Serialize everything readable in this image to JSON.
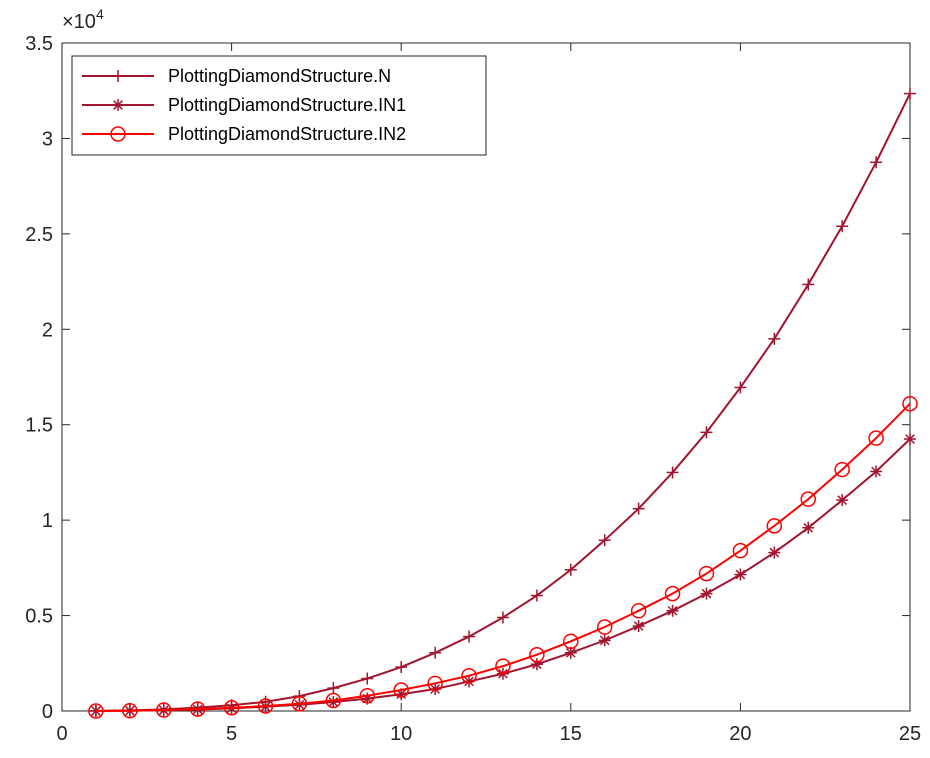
{
  "chart_data": {
    "type": "line",
    "title": "",
    "xlabel": "",
    "ylabel": "",
    "xlim": [
      0,
      25
    ],
    "ylim": [
      0,
      35000
    ],
    "xticks": [
      0,
      5,
      10,
      15,
      20,
      25
    ],
    "xtick_labels": [
      "0",
      "5",
      "10",
      "15",
      "20",
      "25"
    ],
    "yticks": [
      0,
      5000,
      10000,
      15000,
      20000,
      25000,
      30000,
      35000
    ],
    "ytick_labels": [
      "0",
      "0.5",
      "1",
      "1.5",
      "2",
      "2.5",
      "3",
      "3.5"
    ],
    "y_exponent": {
      "base": "×10",
      "power": "4"
    },
    "grid": false,
    "box": true,
    "legend_position": "top-left",
    "x": [
      1,
      2,
      3,
      4,
      5,
      6,
      7,
      8,
      9,
      10,
      11,
      12,
      13,
      14,
      15,
      16,
      17,
      18,
      19,
      20,
      21,
      22,
      23,
      24,
      25
    ],
    "series": [
      {
        "name": "PlottingDiamondStructure.N",
        "color": "#A2142F",
        "marker": "plus",
        "values": [
          8,
          35,
          88,
          175,
          300,
          480,
          780,
          1200,
          1700,
          2300,
          3050,
          3900,
          4900,
          6050,
          7400,
          8950,
          10600,
          12500,
          14600,
          16950,
          19500,
          22350,
          25400,
          28750,
          32350
        ]
      },
      {
        "name": "PlottingDiamondStructure.IN1",
        "color": "#A2142F",
        "marker": "asterisk",
        "values": [
          0,
          12,
          40,
          80,
          140,
          230,
          330,
          470,
          650,
          880,
          1150,
          1550,
          1950,
          2450,
          3050,
          3700,
          4450,
          5250,
          6150,
          7150,
          8300,
          9600,
          11050,
          12550,
          14250
        ]
      },
      {
        "name": "PlottingDiamondStructure.IN2",
        "color": "#FF0000",
        "marker": "circle",
        "values": [
          0,
          15,
          50,
          100,
          170,
          260,
          380,
          550,
          800,
          1100,
          1450,
          1850,
          2350,
          2950,
          3650,
          4400,
          5250,
          6150,
          7200,
          8400,
          9700,
          11100,
          12650,
          14300,
          16100
        ]
      }
    ]
  }
}
